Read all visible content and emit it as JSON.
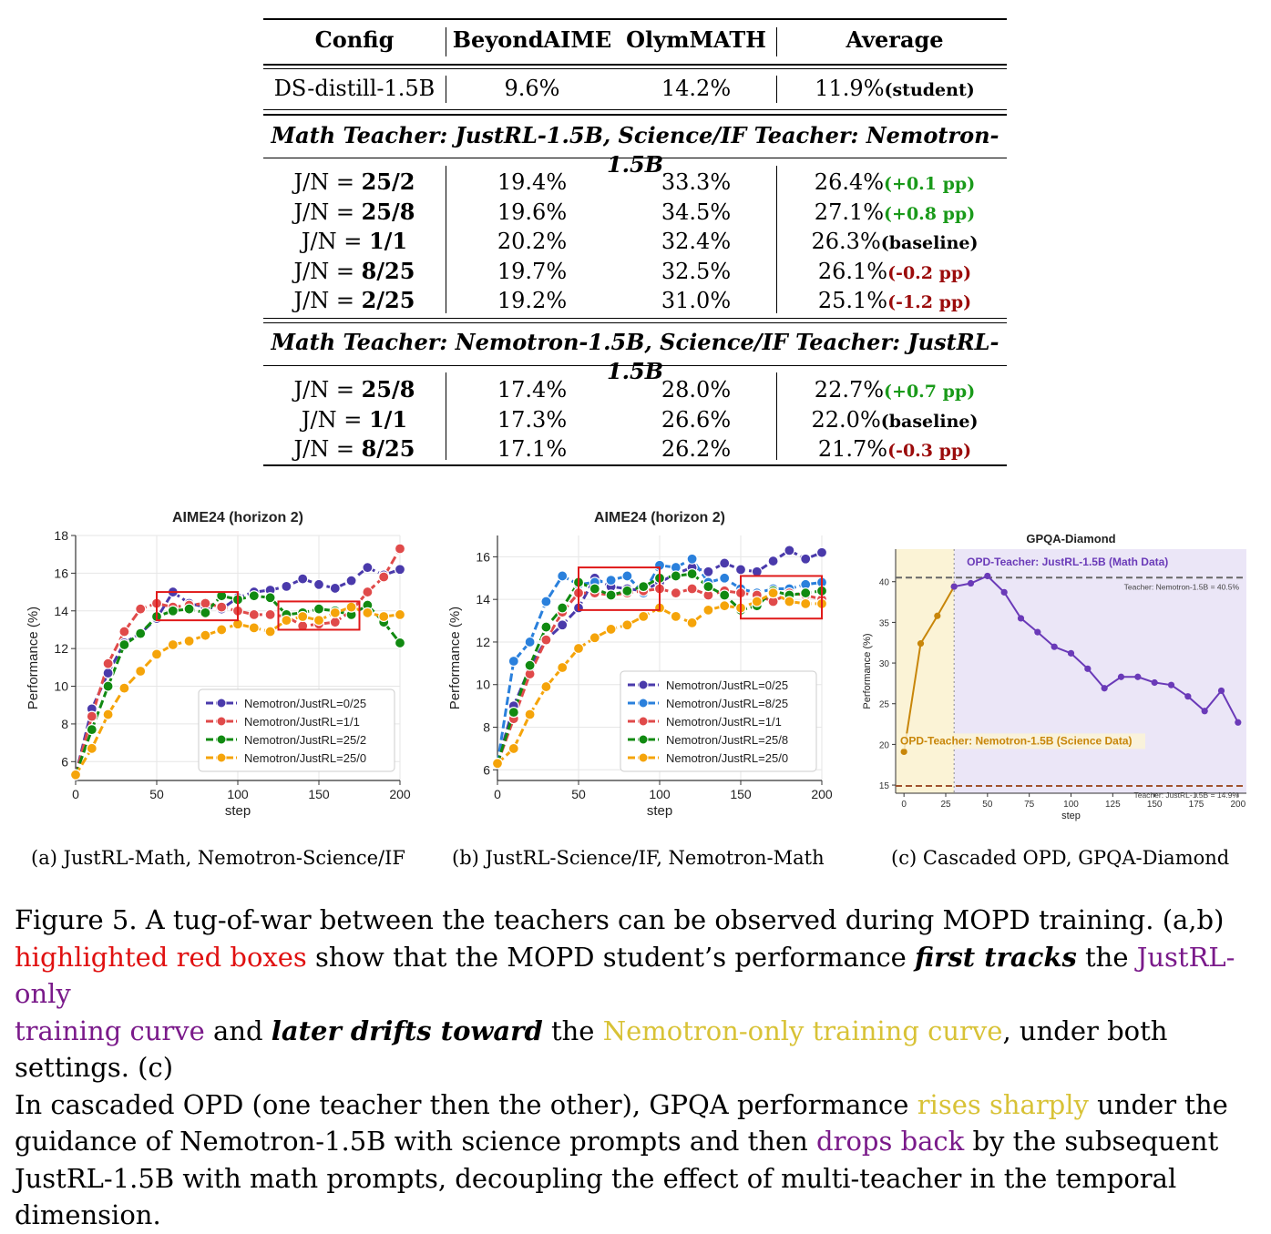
{
  "table": {
    "headers": [
      "Config",
      "BeyondAIME",
      "OlymMATH",
      "Average"
    ],
    "student": {
      "config": "DS-distill-1.5B",
      "beyond": "9.6%",
      "olym": "14.2%",
      "avg": "11.9%",
      "note": "(student)"
    },
    "section1_title": "Math Teacher: JustRL-1.5B, Science/IF Teacher: Nemotron-1.5B",
    "section1_rows": [
      {
        "prefix": "J/N = ",
        "ratio": "25/2",
        "beyond": "19.4%",
        "olym": "33.3%",
        "avg": "26.4%",
        "note": "(+0.1 pp)",
        "kind": "pos"
      },
      {
        "prefix": "J/N = ",
        "ratio": "25/8",
        "beyond": "19.6%",
        "olym": "34.5%",
        "avg": "27.1%",
        "note": "(+0.8 pp)",
        "kind": "pos"
      },
      {
        "prefix": "J/N = ",
        "ratio": "1/1",
        "beyond": "20.2%",
        "olym": "32.4%",
        "avg": "26.3%",
        "note": "(baseline)",
        "kind": "blk"
      },
      {
        "prefix": "J/N = ",
        "ratio": "8/25",
        "beyond": "19.7%",
        "olym": "32.5%",
        "avg": "26.1%",
        "note": "(-0.2 pp)",
        "kind": "neg"
      },
      {
        "prefix": "J/N = ",
        "ratio": "2/25",
        "beyond": "19.2%",
        "olym": "31.0%",
        "avg": "25.1%",
        "note": "(-1.2 pp)",
        "kind": "neg"
      }
    ],
    "section2_title": "Math Teacher: Nemotron-1.5B, Science/IF Teacher: JustRL-1.5B",
    "section2_rows": [
      {
        "prefix": "J/N = ",
        "ratio": "25/8",
        "beyond": "17.4%",
        "olym": "28.0%",
        "avg": "22.7%",
        "note": "(+0.7 pp)",
        "kind": "pos"
      },
      {
        "prefix": "J/N = ",
        "ratio": "1/1",
        "beyond": "17.3%",
        "olym": "26.6%",
        "avg": "22.0%",
        "note": "(baseline)",
        "kind": "blk"
      },
      {
        "prefix": "J/N = ",
        "ratio": "8/25",
        "beyond": "17.1%",
        "olym": "26.2%",
        "avg": "21.7%",
        "note": "(-0.3 pp)",
        "kind": "neg"
      }
    ],
    "colors": {
      "positive": "#1a9a1a",
      "negative": "#9b0b0b"
    }
  },
  "chart_data": [
    {
      "type": "line",
      "title": "AIME24 (horizon 2)",
      "xlabel": "step",
      "ylabel": "Performance (%)",
      "xlim": [
        0,
        200
      ],
      "ylim": [
        5,
        18
      ],
      "xticks": [
        0,
        50,
        100,
        150,
        200
      ],
      "yticks": [
        6,
        8,
        10,
        12,
        14,
        16,
        18
      ],
      "x": [
        0,
        10,
        20,
        30,
        40,
        50,
        60,
        70,
        80,
        90,
        100,
        110,
        120,
        130,
        140,
        150,
        160,
        170,
        180,
        190,
        200
      ],
      "series": [
        {
          "name": "Nemotron/JustRL=0/25",
          "color": "#4a3aab",
          "values": [
            5.3,
            8.8,
            10.7,
            12.3,
            12.8,
            13.6,
            15.0,
            14.4,
            14.2,
            14.1,
            14.7,
            15.0,
            15.1,
            15.3,
            15.7,
            15.4,
            15.2,
            15.6,
            16.3,
            15.9,
            16.2
          ]
        },
        {
          "name": "Nemotron/JustRL=1/1",
          "color": "#e04a4a",
          "values": [
            5.3,
            8.4,
            11.2,
            12.9,
            14.1,
            14.4,
            14.2,
            14.3,
            14.4,
            14.2,
            14.0,
            13.8,
            13.8,
            13.7,
            13.2,
            13.3,
            13.4,
            14.0,
            15.0,
            15.8,
            17.3
          ]
        },
        {
          "name": "Nemotron/JustRL=25/2",
          "color": "#118a11",
          "values": [
            5.3,
            7.7,
            10.0,
            12.2,
            12.8,
            13.7,
            14.0,
            14.1,
            13.9,
            14.8,
            14.6,
            14.8,
            14.7,
            13.8,
            13.9,
            14.1,
            14.0,
            13.8,
            14.3,
            13.4,
            12.3
          ]
        },
        {
          "name": "Nemotron/JustRL=25/0",
          "color": "#f5a40a",
          "values": [
            5.3,
            6.7,
            8.5,
            9.9,
            10.8,
            11.7,
            12.2,
            12.4,
            12.7,
            13.0,
            13.3,
            13.1,
            12.9,
            13.5,
            13.7,
            13.5,
            13.9,
            14.2,
            13.9,
            13.7,
            13.8
          ]
        }
      ],
      "highlight_boxes": [
        [
          50,
          13.5,
          100,
          15.0
        ],
        [
          125,
          13.0,
          175,
          14.5
        ]
      ],
      "legend": "lower-right"
    },
    {
      "type": "line",
      "title": "AIME24 (horizon 2)",
      "xlabel": "step",
      "ylabel": "Performance (%)",
      "xlim": [
        0,
        200
      ],
      "ylim": [
        5.5,
        17
      ],
      "xticks": [
        0,
        50,
        100,
        150,
        200
      ],
      "yticks": [
        6,
        8,
        10,
        12,
        14,
        16
      ],
      "x": [
        0,
        10,
        20,
        30,
        40,
        50,
        60,
        70,
        80,
        90,
        100,
        110,
        120,
        130,
        140,
        150,
        160,
        170,
        180,
        190,
        200
      ],
      "series": [
        {
          "name": "Nemotron/JustRL=0/25",
          "color": "#4a3aab",
          "values": [
            6.3,
            9.0,
            10.8,
            12.1,
            12.8,
            13.6,
            15.0,
            14.6,
            14.5,
            14.4,
            14.8,
            15.2,
            15.5,
            15.3,
            15.7,
            15.4,
            15.3,
            15.8,
            16.3,
            15.9,
            16.2
          ]
        },
        {
          "name": "Nemotron/JustRL=8/25",
          "color": "#2a80dc",
          "values": [
            6.3,
            11.1,
            12.0,
            13.9,
            15.1,
            14.7,
            14.8,
            14.9,
            15.1,
            14.3,
            15.6,
            15.5,
            15.9,
            14.8,
            15.0,
            14.5,
            14.3,
            14.5,
            14.5,
            14.7,
            14.8
          ]
        },
        {
          "name": "Nemotron/JustRL=1/1",
          "color": "#e04a4a",
          "values": [
            6.3,
            8.4,
            10.5,
            12.1,
            13.4,
            14.3,
            14.3,
            14.2,
            14.3,
            14.4,
            14.5,
            14.3,
            14.5,
            14.2,
            14.4,
            14.3,
            14.2,
            13.9,
            14.3,
            14.2,
            14.0
          ]
        },
        {
          "name": "Nemotron/JustRL=25/8",
          "color": "#118a11",
          "values": [
            6.3,
            8.7,
            10.9,
            12.7,
            13.6,
            14.8,
            14.5,
            14.2,
            14.4,
            14.6,
            15.0,
            15.1,
            15.2,
            14.6,
            14.2,
            13.5,
            13.7,
            14.4,
            14.2,
            14.3,
            14.4
          ]
        },
        {
          "name": "Nemotron/JustRL=25/0",
          "color": "#f5a40a",
          "values": [
            6.3,
            7.0,
            8.6,
            9.9,
            10.8,
            11.7,
            12.2,
            12.6,
            12.8,
            13.2,
            13.6,
            13.2,
            12.9,
            13.5,
            13.7,
            13.6,
            13.9,
            14.3,
            13.9,
            13.8,
            13.8
          ]
        }
      ],
      "highlight_boxes": [
        [
          50,
          13.5,
          100,
          15.5
        ],
        [
          150,
          13.1,
          200,
          15.1
        ]
      ],
      "legend": "lower-right"
    },
    {
      "type": "line",
      "title": "GPQA-Diamond",
      "xlabel": "step",
      "ylabel": "Performance (%)",
      "xlim": [
        -5,
        205
      ],
      "ylim": [
        14,
        44
      ],
      "xticks": [
        0,
        25,
        50,
        75,
        100,
        125,
        150,
        175,
        200
      ],
      "yticks": [
        15,
        20,
        25,
        30,
        35,
        40
      ],
      "phase_boundary": 30,
      "series": [
        {
          "name": "OPD-Teacher: Nemotron-1.5B (Science Data)",
          "color": "#c8860a",
          "x": [
            0,
            10,
            20,
            30
          ],
          "values": [
            19.1,
            32.4,
            35.8,
            39.4
          ]
        },
        {
          "name": "OPD-Teacher: JustRL-1.5B (Math Data)",
          "color": "#6a3ab8",
          "x": [
            30,
            40,
            50,
            60,
            70,
            80,
            90,
            100,
            110,
            120,
            130,
            140,
            150,
            160,
            170,
            180,
            190,
            200
          ],
          "values": [
            39.4,
            39.8,
            40.7,
            38.7,
            35.5,
            33.8,
            32.0,
            31.2,
            29.3,
            26.9,
            28.3,
            28.3,
            27.6,
            27.3,
            25.9,
            24.1,
            26.6,
            22.7
          ]
        }
      ],
      "reference_lines": [
        {
          "label": "Teacher: Nemotron-1.5B = 40.5%",
          "value": 40.5,
          "color": "#666666"
        },
        {
          "label": "Teacher: JustRL-1.5B = 14.9%",
          "value": 14.9,
          "color": "#a0522d"
        }
      ]
    }
  ],
  "panel_captions": [
    "(a) JustRL-Math, Nemotron-Science/IF",
    "(b) JustRL-Science/IF, Nemotron-Math",
    "(c) Cascaded OPD, GPQA-Diamond"
  ],
  "figure_caption": {
    "l1": "Figure 5. A tug-of-war between the teachers can be observed during MOPD training. (a,b)",
    "l2a": "highlighted red boxes",
    "l2b": " show that the MOPD student’s performance ",
    "l2c": "first tracks",
    "l2d": " the ",
    "l2e": "JustRL-only",
    "l3a": "training curve",
    "l3b": " and ",
    "l3c": "later drifts toward",
    "l3d": " the ",
    "l3e": "Nemotron-only training curve",
    "l3f": ", under both settings. (c)",
    "l4a": "In cascaded OPD (one teacher then the other), GPQA performance ",
    "l4b": "rises sharply",
    "l4c": " under the",
    "l5a": "guidance of Nemotron-1.5B with science prompts and then ",
    "l5b": "drops back",
    "l5c": " by the subsequent",
    "l6": "JustRL-1.5B with math prompts, decoupling the effect of multi-teacher in the temporal dimension."
  }
}
